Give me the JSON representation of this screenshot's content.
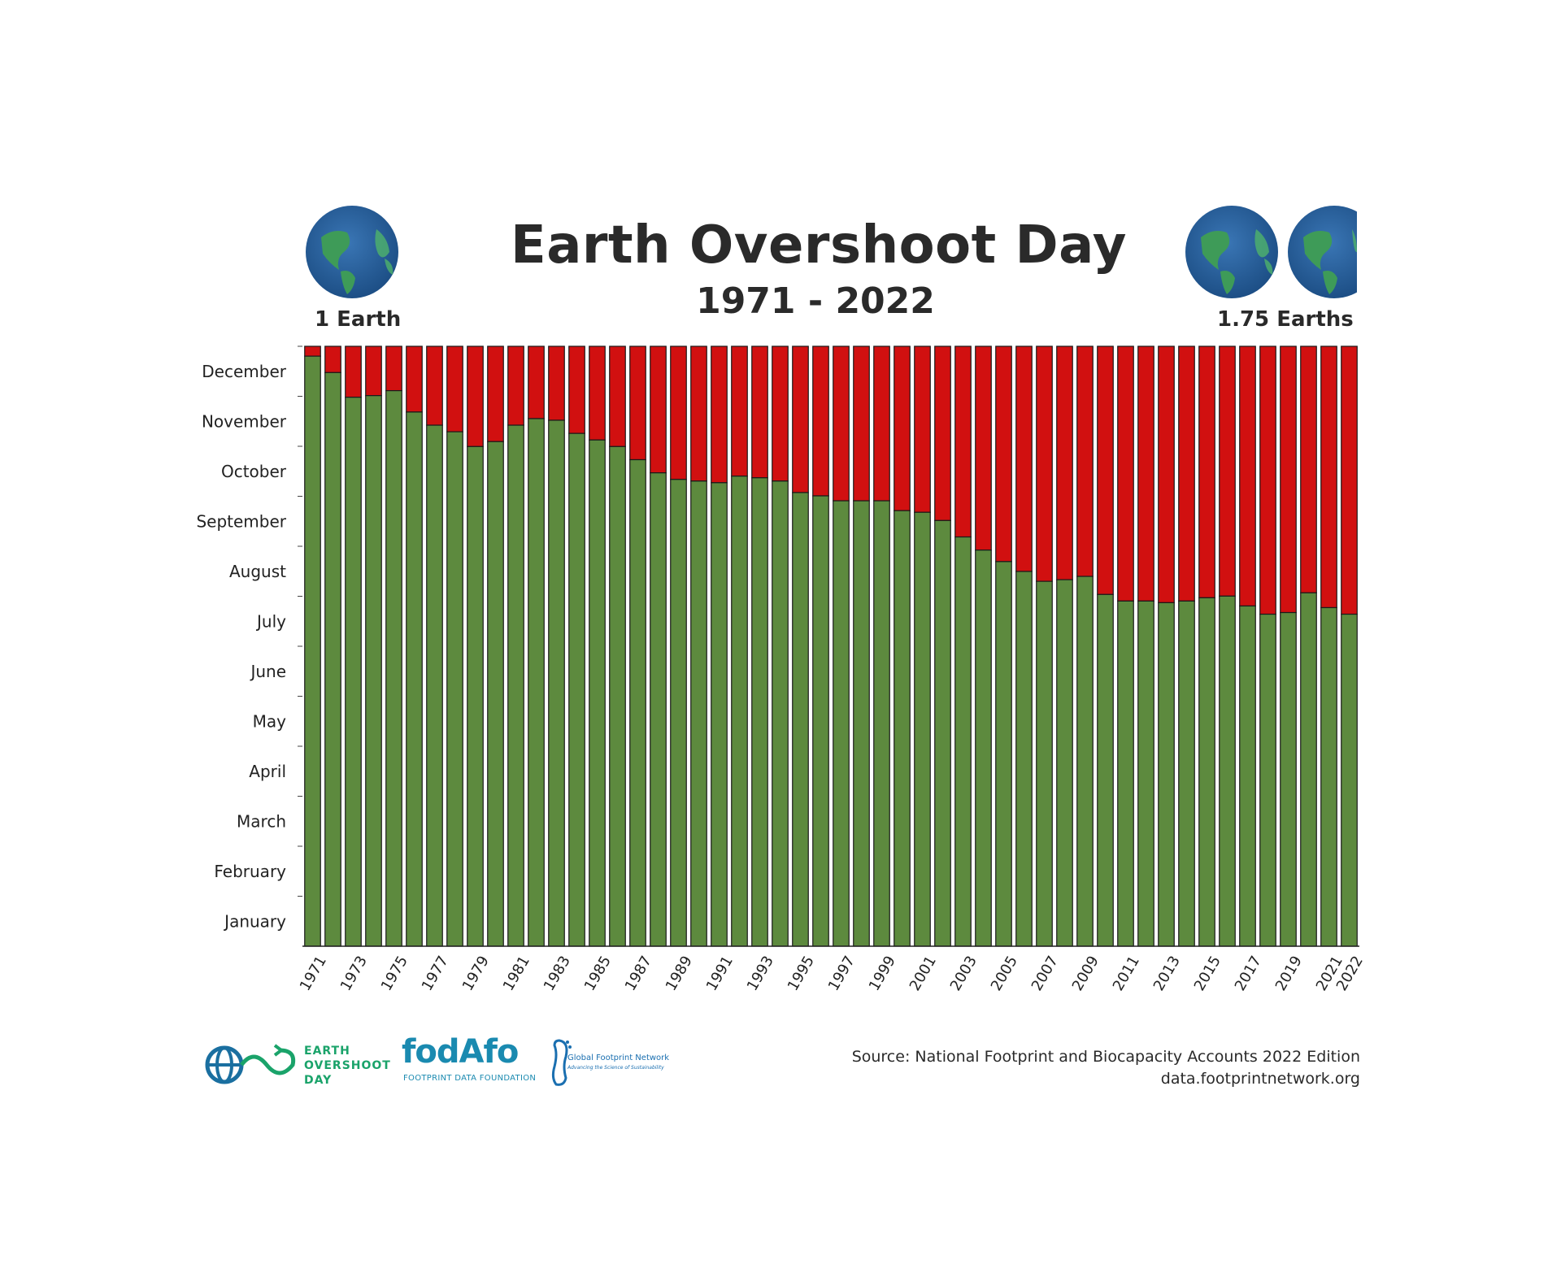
{
  "header": {
    "title": "Earth Overshoot Day",
    "subtitle": "1971 - 2022",
    "left_caption": "1 Earth",
    "right_caption": "1.75 Earths"
  },
  "chart_data": {
    "type": "bar",
    "title": "Earth Overshoot Day",
    "subtitle": "1971 - 2022",
    "xlabel": "",
    "ylabel": "",
    "y_ticks": [
      "January",
      "February",
      "March",
      "April",
      "May",
      "June",
      "July",
      "August",
      "September",
      "October",
      "November",
      "December"
    ],
    "ylim": [
      0,
      365
    ],
    "y_unit": "day of year",
    "x_tick_labels": [
      "1971",
      "1973",
      "1975",
      "1977",
      "1979",
      "1981",
      "1983",
      "1985",
      "1987",
      "1989",
      "1991",
      "1993",
      "1995",
      "1997",
      "1999",
      "2001",
      "2003",
      "2005",
      "2007",
      "2009",
      "2011",
      "2013",
      "2015",
      "2017",
      "2019",
      "2021",
      "2022"
    ],
    "categories": [
      "1971",
      "1972",
      "1973",
      "1974",
      "1975",
      "1976",
      "1977",
      "1978",
      "1979",
      "1980",
      "1981",
      "1982",
      "1983",
      "1984",
      "1985",
      "1986",
      "1987",
      "1988",
      "1989",
      "1990",
      "1991",
      "1992",
      "1993",
      "1994",
      "1995",
      "1996",
      "1997",
      "1998",
      "1999",
      "2000",
      "2001",
      "2002",
      "2003",
      "2004",
      "2005",
      "2006",
      "2007",
      "2008",
      "2009",
      "2010",
      "2011",
      "2012",
      "2013",
      "2014",
      "2015",
      "2016",
      "2017",
      "2018",
      "2019",
      "2020",
      "2021",
      "2022"
    ],
    "values": [
      359,
      349,
      334,
      335,
      338,
      325,
      317,
      313,
      304,
      307,
      317,
      321,
      320,
      312,
      308,
      304,
      296,
      288,
      284,
      283,
      282,
      286,
      285,
      283,
      276,
      274,
      271,
      271,
      271,
      265,
      264,
      259,
      249,
      241,
      234,
      228,
      222,
      223,
      225,
      214,
      210,
      210,
      209,
      210,
      212,
      213,
      207,
      202,
      203,
      215,
      206,
      202
    ],
    "colors": {
      "before": "#5d8a3e",
      "after": "#d11010",
      "outline": "#1a1a1a"
    },
    "grid": false
  },
  "footer": {
    "source_line1": "Source: National Footprint and Biocapacity Accounts 2022 Edition",
    "source_line2": "data.footprintnetwork.org",
    "logo1": [
      "EARTH",
      "OVERSHOOT",
      "DAY"
    ],
    "logo2": "fodAfo",
    "logo2_sub": "FOOTPRINT DATA FOUNDATION",
    "logo3": "Global Footprint Network",
    "logo3_sub": "Advancing the Science of Sustainability"
  }
}
